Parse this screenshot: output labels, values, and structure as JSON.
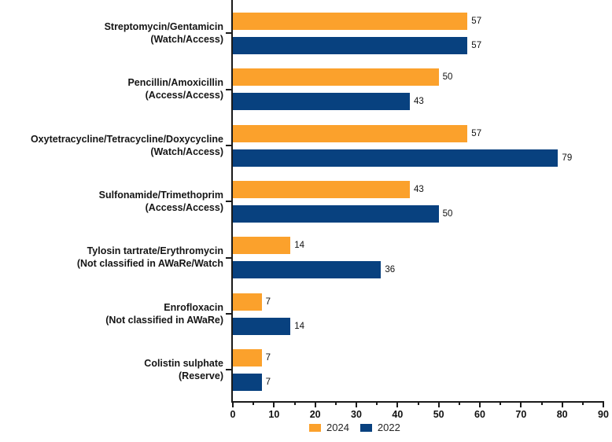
{
  "chart_data": {
    "type": "bar",
    "orientation": "horizontal",
    "title": "",
    "xlabel": "",
    "ylabel": "",
    "xlim": [
      0,
      90
    ],
    "x_major_ticks": [
      0,
      10,
      20,
      30,
      40,
      50,
      60,
      70,
      80,
      90
    ],
    "x_minor_tick_step": 5,
    "grid": false,
    "bar_value_labels_shown": true,
    "legend_position": "bottom",
    "axis_color": "#1a1a1a",
    "categories": [
      {
        "name": "Streptomycin/Gentamicin",
        "aware": "(Watch/Access)"
      },
      {
        "name": "Pencillin/Amoxicillin",
        "aware": "(Access/Access)"
      },
      {
        "name": "Oxytetracycline/Tetracycline/Doxycycline",
        "aware": "(Watch/Access)"
      },
      {
        "name": "Sulfonamide/Trimethoprim",
        "aware": "(Access/Access)"
      },
      {
        "name": "Tylosin tartrate/Erythromycin",
        "aware": "(Not classified in AWaRe/Watch"
      },
      {
        "name": "Enrofloxacin",
        "aware": "(Not classified in AWaRe)"
      },
      {
        "name": "Colistin sulphate",
        "aware": "(Reserve)"
      }
    ],
    "series": [
      {
        "name": "2024",
        "color": "#FBA12C",
        "values": [
          57,
          50,
          57,
          43,
          14,
          7,
          7
        ]
      },
      {
        "name": "2022",
        "color": "#08417F",
        "values": [
          57,
          43,
          79,
          50,
          36,
          14,
          7
        ]
      }
    ]
  }
}
